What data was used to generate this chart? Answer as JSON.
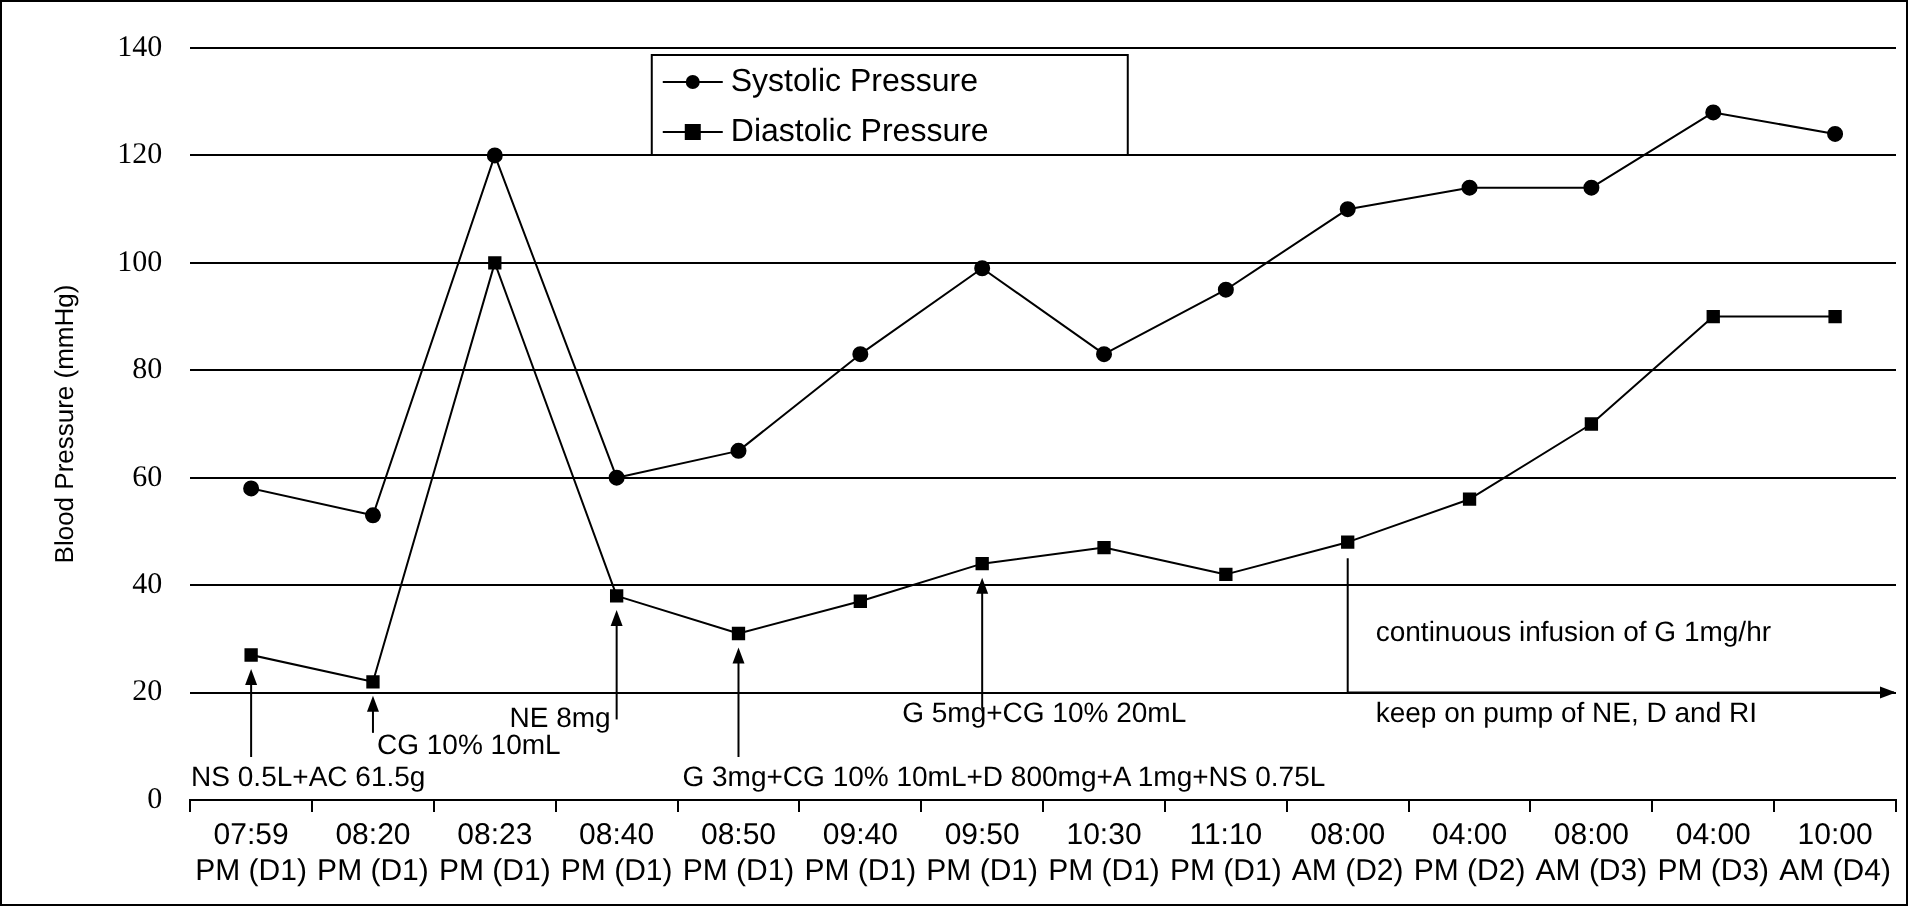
{
  "chart_data": {
    "type": "line",
    "ylabel": "Blood Pressure (mmHg)",
    "categories": [
      "07:59 PM (D1)",
      "08:20 PM (D1)",
      "08:23 PM (D1)",
      "08:40 PM (D1)",
      "08:50 PM (D1)",
      "09:40 PM (D1)",
      "09:50 PM (D1)",
      "10:30 PM (D1)",
      "11:10 PM (D1)",
      "08:00 AM (D2)",
      "04:00 PM (D2)",
      "08:00 AM (D3)",
      "04:00 PM (D3)",
      "10:00 AM (D4)"
    ],
    "series": [
      {
        "name": "Systolic Pressure",
        "color": "#000000",
        "marker": "circle",
        "values": [
          58,
          53,
          120,
          60,
          65,
          83,
          99,
          83,
          95,
          110,
          114,
          114,
          128,
          124
        ]
      },
      {
        "name": "Diastolic Pressure",
        "color": "#000000",
        "marker": "square",
        "values": [
          27,
          22,
          100,
          38,
          31,
          37,
          44,
          47,
          42,
          48,
          56,
          70,
          90,
          90
        ]
      }
    ],
    "ylim": [
      0,
      140
    ],
    "yticks": [
      0,
      20,
      40,
      60,
      80,
      100,
      120,
      140
    ],
    "grid": "y",
    "legend": "top",
    "line_style": "solid",
    "annotations": [
      "NS 0.5L+AC 61.5g",
      "CG 10% 10mL",
      "NE 8mg",
      "G 3mg+CG 10% 10mL+D 800mg+A 1mg+NS 0.75L",
      "G 5mg+CG 10% 20mL",
      "continuous infusion of G 1mg/hr",
      "keep on pump of NE, D and RI"
    ]
  }
}
